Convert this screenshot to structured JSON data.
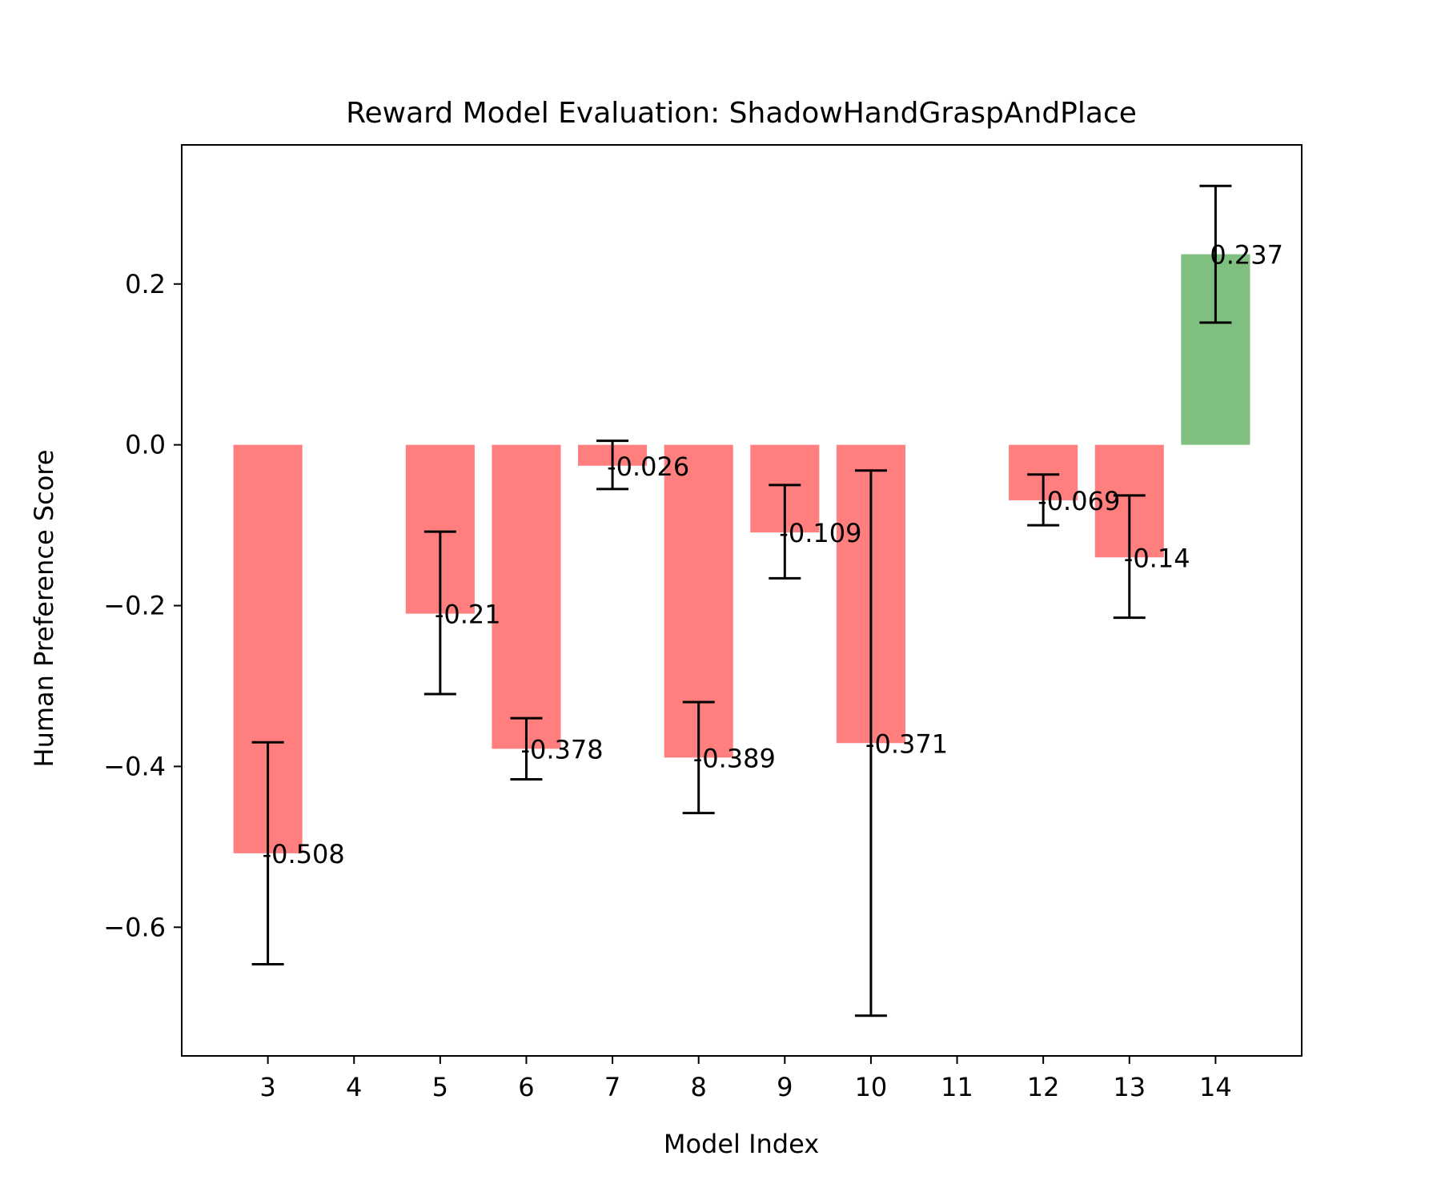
{
  "chart_data": {
    "type": "bar",
    "title": "Reward Model Evaluation: ShadowHandGraspAndPlace",
    "xlabel": "Model Index",
    "ylabel": "Human Preference Score",
    "x_ticks": [
      "3",
      "4",
      "5",
      "6",
      "7",
      "8",
      "9",
      "10",
      "11",
      "12",
      "13",
      "14"
    ],
    "y_ticks": [
      "0.2",
      "0.0",
      "−0.2",
      "−0.4",
      "−0.6"
    ],
    "y_tick_values": [
      0.2,
      0.0,
      -0.2,
      -0.4,
      -0.6
    ],
    "xlim": [
      2,
      15
    ],
    "ylim": [
      -0.76,
      0.373
    ],
    "grid": false,
    "colors": {
      "negative": "#ff7f7f",
      "positive": "#7fbf7f",
      "error_bar": "#000000",
      "axes": "#000000"
    },
    "bars": [
      {
        "x": 3,
        "value": -0.508,
        "err_low": -0.646,
        "err_high": -0.37,
        "label": "-0.508"
      },
      {
        "x": 5,
        "value": -0.21,
        "err_low": -0.31,
        "err_high": -0.108,
        "label": "-0.21"
      },
      {
        "x": 6,
        "value": -0.378,
        "err_low": -0.416,
        "err_high": -0.34,
        "label": "-0.378"
      },
      {
        "x": 7,
        "value": -0.026,
        "err_low": -0.055,
        "err_high": 0.005,
        "label": "-0.026"
      },
      {
        "x": 8,
        "value": -0.389,
        "err_low": -0.458,
        "err_high": -0.32,
        "label": "-0.389"
      },
      {
        "x": 9,
        "value": -0.109,
        "err_low": -0.166,
        "err_high": -0.05,
        "label": "-0.109"
      },
      {
        "x": 10,
        "value": -0.371,
        "err_low": -0.71,
        "err_high": -0.032,
        "label": "-0.371"
      },
      {
        "x": 12,
        "value": -0.069,
        "err_low": -0.1,
        "err_high": -0.037,
        "label": "-0.069"
      },
      {
        "x": 13,
        "value": -0.14,
        "err_low": -0.215,
        "err_high": -0.063,
        "label": "-0.14"
      },
      {
        "x": 14,
        "value": 0.237,
        "err_low": 0.152,
        "err_high": 0.322,
        "label": "0.237"
      }
    ]
  }
}
